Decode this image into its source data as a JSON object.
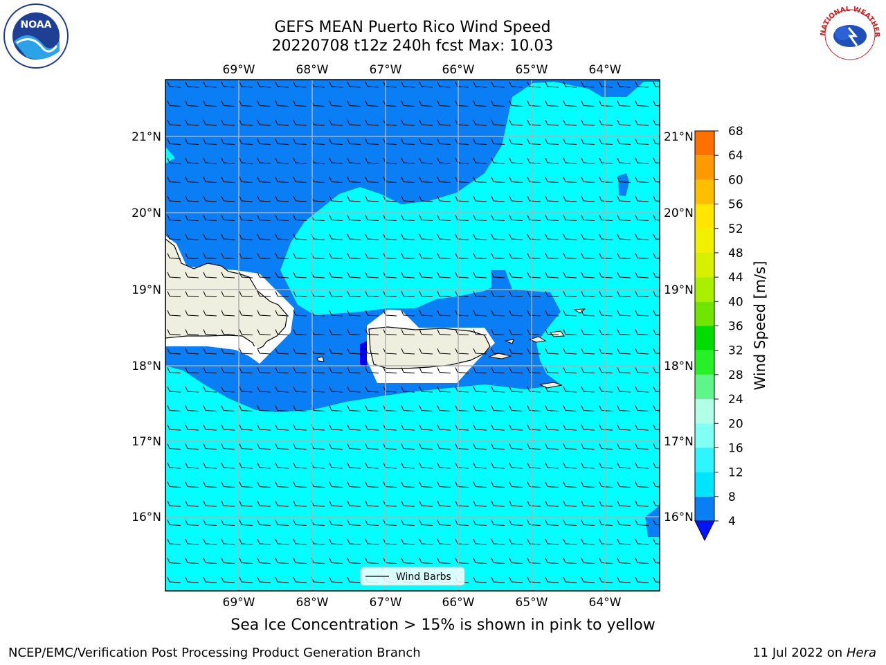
{
  "title": {
    "line1": "GEFS MEAN Puerto Rico Wind Speed",
    "line2": "20220708 t12z 240h fcst   Max: 10.03"
  },
  "longitude_labels": [
    "69°W",
    "68°W",
    "67°W",
    "66°W",
    "65°W",
    "64°W"
  ],
  "latitude_labels": [
    "21°N",
    "20°N",
    "19°N",
    "18°N",
    "17°N",
    "16°N"
  ],
  "legend": {
    "wind_barbs": "Wind Barbs"
  },
  "colorbar": {
    "label": "Wind Speed [m/s]",
    "ticks": [
      "4",
      "8",
      "12",
      "16",
      "20",
      "24",
      "28",
      "32",
      "36",
      "40",
      "44",
      "48",
      "52",
      "56",
      "60",
      "64",
      "68"
    ],
    "colors": [
      "#0a7ef5",
      "#00e5ff",
      "#2ef5ff",
      "#80fff5",
      "#b0ffe6",
      "#5ef58a",
      "#28f028",
      "#00dc00",
      "#70e600",
      "#aaee00",
      "#d6f000",
      "#f0f000",
      "#ffe600",
      "#ffbf00",
      "#ff9900",
      "#ff7000",
      "#ff4000",
      "#ff1400"
    ],
    "under_color": "#0014ff"
  },
  "map_colors": {
    "band_4_8": "#0a7ef5",
    "band_8_12": "#00ffff",
    "band_12_16": "#33f5f5",
    "land": "#efefdf",
    "below_4": "#0000ee"
  },
  "caption": "Sea Ice Concentration > 15% is shown in pink to yellow",
  "footer": {
    "left": "NCEP/EMC/Verification Post Processing Product Generation Branch",
    "right_date": "11 Jul 2022 on ",
    "right_host": "Hera"
  },
  "logos": {
    "noaa": "NOAA",
    "nws_text": "NATIONAL WEATHER SERVICE"
  }
}
